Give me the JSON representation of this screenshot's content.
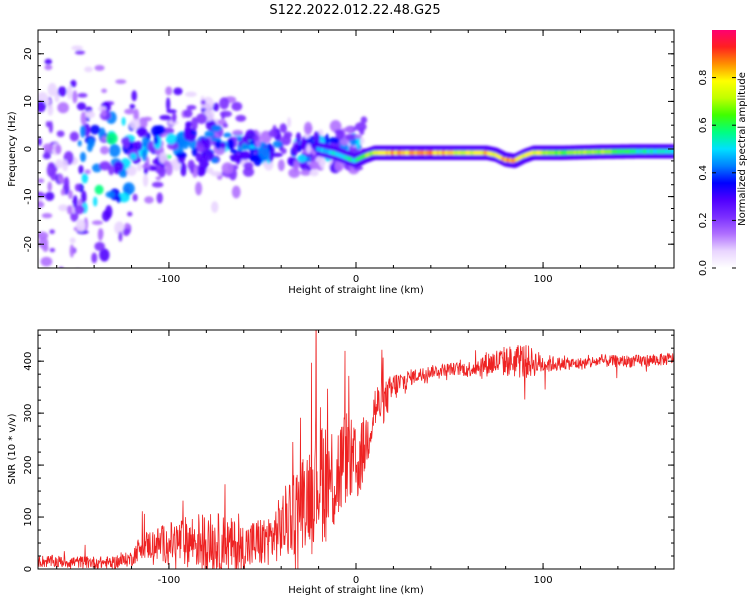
{
  "figure_title": "S122.2022.012.22.48.G25",
  "chart_data": [
    {
      "type": "heatmap",
      "xlabel": "Height of straight line (km)",
      "ylabel": "Frequency (Hz)",
      "xlim": [
        -170,
        170
      ],
      "ylim": [
        -25,
        25
      ],
      "xticks": [
        -100,
        0,
        100
      ],
      "yticks": [
        -20,
        -10,
        0,
        10,
        20
      ],
      "colorbar": {
        "label": "Normalized spectral amplitude",
        "range": [
          0,
          1
        ],
        "ticks": [
          0.0,
          0.2,
          0.4,
          0.6,
          0.8
        ],
        "tick_labels": [
          "0.0",
          "0.2",
          "0.4",
          "0.6",
          "0.8"
        ],
        "colormap": [
          "#ffffff",
          "#e9d5ff",
          "#b070ff",
          "#7b2fff",
          "#5000ff",
          "#0000ff",
          "#0080ff",
          "#00e0ff",
          "#00ff80",
          "#40ff00",
          "#c0ff00",
          "#ffff00",
          "#ff9000",
          "#ff2020",
          "#ff0070"
        ]
      },
      "ridge_line": {
        "x": [
          -20,
          -10,
          0,
          5,
          10,
          20,
          40,
          60,
          70,
          75,
          80,
          85,
          90,
          95,
          100,
          110,
          130,
          150,
          170
        ],
        "y": [
          0,
          -1,
          -2.5,
          -1.5,
          -0.8,
          -0.8,
          -0.8,
          -0.8,
          -0.8,
          -1.2,
          -2.2,
          -2.5,
          -1.5,
          -0.8,
          -0.8,
          -0.8,
          -0.6,
          -0.5,
          -0.5
        ],
        "amplitude": [
          0.5,
          0.55,
          0.6,
          0.7,
          0.8,
          0.9,
          0.9,
          0.8,
          0.85,
          0.85,
          0.9,
          0.9,
          0.8,
          0.85,
          0.75,
          0.7,
          0.75,
          0.6,
          0.55
        ]
      }
    },
    {
      "type": "line",
      "xlabel": "Height of straight line (km)",
      "ylabel": "SNR (10 * v/v)",
      "xlim": [
        -170,
        170
      ],
      "ylim": [
        0,
        460
      ],
      "xticks": [
        -100,
        0,
        100
      ],
      "yticks": [
        0,
        100,
        200,
        300,
        400
      ],
      "color": "#ee2222",
      "envelope": {
        "x": [
          -170,
          -130,
          -120,
          -115,
          -100,
          -85,
          -75,
          -60,
          -45,
          -35,
          -25,
          -20,
          -15,
          -10,
          -5,
          0,
          5,
          10,
          15,
          20,
          30,
          40,
          50,
          60,
          70,
          80,
          90,
          100,
          110,
          120,
          130,
          140,
          150,
          160,
          170
        ],
        "y": [
          15,
          12,
          20,
          45,
          50,
          55,
          50,
          40,
          60,
          100,
          150,
          190,
          170,
          180,
          220,
          190,
          240,
          310,
          320,
          350,
          370,
          380,
          385,
          385,
          395,
          400,
          400,
          395,
          395,
          395,
          400,
          400,
          400,
          402,
          405
        ],
        "spread": [
          12,
          12,
          15,
          25,
          40,
          55,
          60,
          50,
          50,
          80,
          100,
          140,
          120,
          110,
          90,
          80,
          60,
          50,
          40,
          30,
          15,
          12,
          12,
          15,
          25,
          30,
          35,
          20,
          12,
          12,
          12,
          12,
          12,
          12,
          12
        ]
      }
    }
  ]
}
